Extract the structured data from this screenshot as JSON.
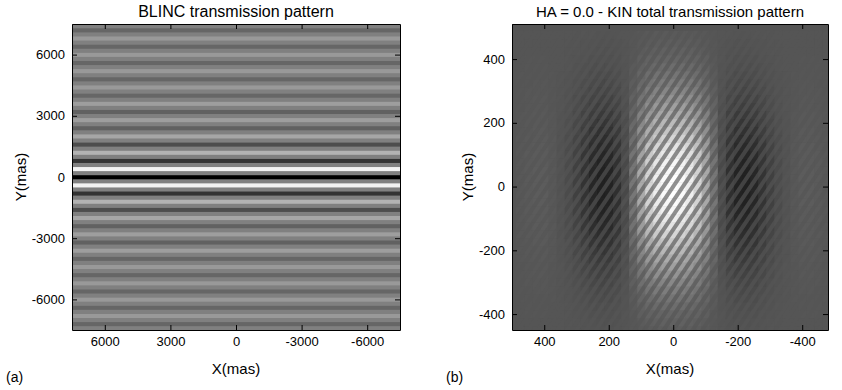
{
  "chart_data": [
    {
      "type": "heatmap",
      "title": "BLINC transmission pattern",
      "x_label": "X(mas)",
      "y_label": "Y(mas)",
      "panel_label": "(a)",
      "xlim": [
        7500,
        -7500
      ],
      "ylim": [
        -7500,
        7500
      ],
      "xticks": [
        6000,
        3000,
        0,
        -3000,
        -6000
      ],
      "yticks": [
        -6000,
        -3000,
        0,
        3000,
        6000
      ],
      "zlim": [
        0,
        1
      ],
      "y": [
        -7400,
        -7200,
        -7000,
        -6800,
        -6600,
        -6400,
        -6200,
        -6000,
        -5800,
        -5600,
        -5400,
        -5200,
        -5000,
        -4800,
        -4600,
        -4400,
        -4200,
        -4000,
        -3800,
        -3600,
        -3400,
        -3200,
        -3000,
        -2800,
        -2600,
        -2400,
        -2200,
        -2000,
        -1800,
        -1600,
        -1400,
        -1200,
        -1000,
        -800,
        -600,
        -400,
        -200,
        0,
        200,
        400,
        600,
        800,
        1000,
        1200,
        1400,
        1600,
        1800,
        2000,
        2200,
        2400,
        2600,
        2800,
        3000,
        3200,
        3400,
        3600,
        3800,
        4000,
        4200,
        4400,
        4600,
        4800,
        5000,
        5200,
        5400,
        5600,
        5800,
        6000,
        6200,
        6400,
        6600,
        6800,
        7000,
        7200,
        7400
      ],
      "values": [
        0.5,
        0.4,
        0.5,
        0.6,
        0.5,
        0.4,
        0.5,
        0.6,
        0.5,
        0.4,
        0.5,
        0.6,
        0.5,
        0.4,
        0.5,
        0.6,
        0.5,
        0.4,
        0.5,
        0.62,
        0.5,
        0.38,
        0.5,
        0.62,
        0.5,
        0.38,
        0.5,
        0.65,
        0.5,
        0.3,
        0.5,
        0.7,
        0.5,
        0.2,
        0.5,
        0.95,
        0.5,
        0,
        0.5,
        0.95,
        0.5,
        0.2,
        0.5,
        0.7,
        0.5,
        0.3,
        0.5,
        0.65,
        0.5,
        0.38,
        0.5,
        0.62,
        0.5,
        0.38,
        0.5,
        0.62,
        0.5,
        0.4,
        0.5,
        0.6,
        0.5,
        0.4,
        0.5,
        0.6,
        0.5,
        0.4,
        0.5,
        0.6,
        0.5,
        0.4,
        0.5,
        0.6,
        0.5,
        0.4,
        0.5
      ]
    },
    {
      "type": "heatmap",
      "title": "HA = 0.0 - KIN total transmission pattern",
      "x_label": "X(mas)",
      "y_label": "Y(mas)",
      "panel_label": "(b)",
      "xlim": [
        500,
        -480
      ],
      "ylim": [
        -450,
        510
      ],
      "xticks": [
        400,
        200,
        0,
        -200,
        -400
      ],
      "yticks": [
        -400,
        -200,
        0,
        200,
        400
      ],
      "zlim": [
        -1,
        1
      ],
      "envelope_x": {
        "x": [
          -475,
          -450,
          -425,
          -400,
          -375,
          -350,
          -325,
          -300,
          -275,
          -250,
          -225,
          -200,
          -175,
          -150,
          -125,
          -100,
          -75,
          -50,
          -25,
          0,
          25,
          50,
          75,
          100,
          125,
          150,
          175,
          200,
          225,
          250,
          275,
          300,
          325,
          350,
          375,
          400,
          425,
          450,
          475
        ],
        "values": [
          0.02,
          0.03,
          0.04,
          0.04,
          0.02,
          -0.04,
          -0.12,
          -0.25,
          -0.4,
          -0.55,
          -0.62,
          -0.6,
          -0.45,
          -0.15,
          0.2,
          0.5,
          0.75,
          0.9,
          0.97,
          1,
          0.97,
          0.9,
          0.75,
          0.5,
          0.2,
          -0.15,
          -0.45,
          -0.6,
          -0.62,
          -0.55,
          -0.4,
          -0.25,
          -0.12,
          -0.04,
          0.02,
          0.04,
          0.04,
          0.03,
          0.02
        ]
      },
      "envelope_y": {
        "y": [
          -475,
          -450,
          -425,
          -400,
          -375,
          -350,
          -325,
          -300,
          -275,
          -250,
          -225,
          -200,
          -175,
          -150,
          -125,
          -100,
          -75,
          -50,
          -25,
          0,
          25,
          50,
          75,
          100,
          125,
          150,
          175,
          200,
          225,
          250,
          275,
          300,
          325,
          350,
          375,
          400,
          425,
          450,
          475
        ],
        "values": [
          0.03,
          0.05,
          0.07,
          0.1,
          0.14,
          0.19,
          0.24,
          0.3,
          0.37,
          0.44,
          0.52,
          0.6,
          0.68,
          0.76,
          0.84,
          0.9,
          0.95,
          0.98,
          1,
          1,
          1,
          0.98,
          0.95,
          0.9,
          0.84,
          0.76,
          0.68,
          0.6,
          0.52,
          0.44,
          0.37,
          0.3,
          0.24,
          0.19,
          0.14,
          0.1,
          0.07,
          0.05,
          0.03
        ]
      },
      "fringes": {
        "x": [
          -855,
          -825,
          -795,
          -765,
          -735,
          -705,
          -675,
          -645,
          -615,
          -585,
          -555,
          -525,
          -495,
          -465,
          -435,
          -405,
          -375,
          -345,
          -315,
          -285,
          -255,
          -225,
          -195,
          -165,
          -135,
          -105,
          -75,
          -45,
          -15,
          15,
          45,
          75,
          105,
          135,
          165,
          195,
          225,
          255,
          285,
          315,
          345,
          375,
          405,
          435,
          465,
          495,
          525,
          555,
          585,
          615,
          645,
          675,
          705,
          735,
          765,
          795,
          825,
          855
        ],
        "slope": -1.5
      }
    }
  ]
}
